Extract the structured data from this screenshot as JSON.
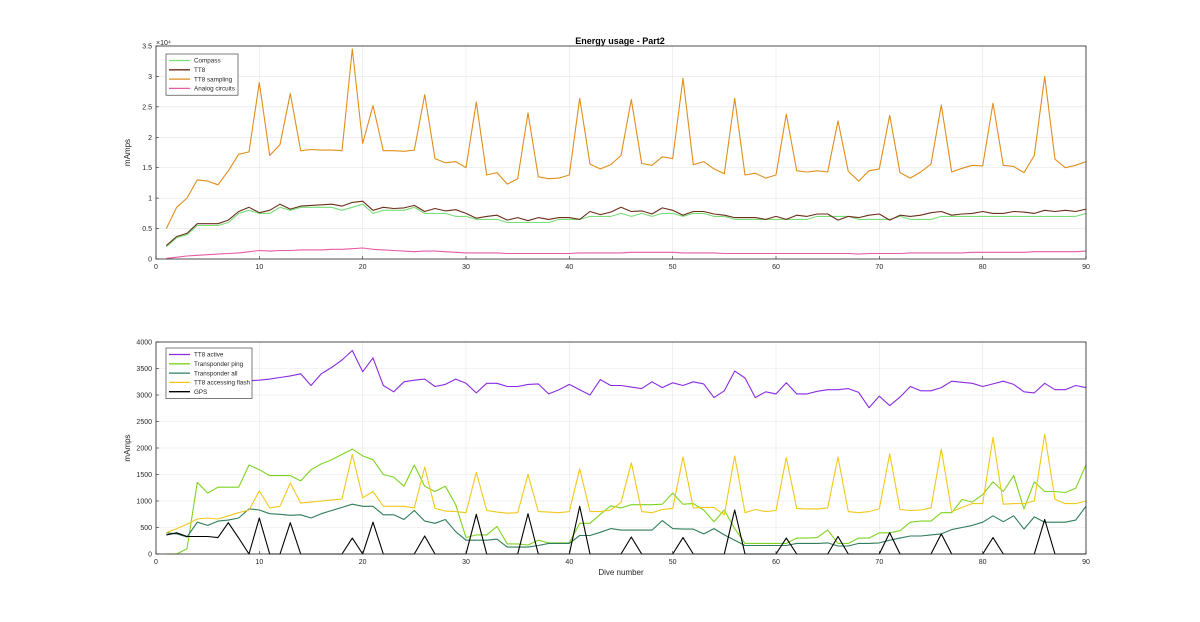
{
  "chart_data": [
    {
      "type": "line",
      "title": "Energy usage - Part2",
      "xlabel": "",
      "ylabel": "mAmps",
      "xlim": [
        0,
        90
      ],
      "ylim": [
        0,
        35000
      ],
      "y_exponent_label": "×10⁴",
      "x_ticks": [
        0,
        10,
        20,
        30,
        40,
        50,
        60,
        70,
        80,
        90
      ],
      "y_ticks": [
        0,
        5000,
        10000,
        15000,
        20000,
        25000,
        30000,
        35000
      ],
      "y_tick_labels": [
        "0",
        "0.5",
        "1",
        "1.5",
        "2",
        "2.5",
        "3",
        "3.5"
      ],
      "grid": true,
      "legend_position": "top-left",
      "series": [
        {
          "name": "Compass",
          "color": "#77dd77",
          "values": [
            2000,
            3500,
            4000,
            5500,
            5500,
            5500,
            6000,
            7500,
            8000,
            7500,
            7500,
            8500,
            8000,
            8500,
            8500,
            8500,
            8500,
            8000,
            8500,
            9000,
            7500,
            8000,
            8000,
            8000,
            8500,
            7500,
            7500,
            7500,
            7000,
            7000,
            6500,
            6500,
            6500,
            6000,
            6000,
            6000,
            6000,
            6000,
            6500,
            6500,
            6500,
            7000,
            7000,
            7000,
            7500,
            7000,
            7500,
            7000,
            7500,
            7500,
            7000,
            7500,
            7500,
            7000,
            7000,
            6500,
            6500,
            6500,
            6500,
            6500,
            6500,
            6500,
            6500,
            7000,
            7000,
            7000,
            7000,
            6500,
            6500,
            6500,
            6500,
            7000,
            6500,
            6500,
            6500,
            7000,
            7000,
            7000,
            7000,
            7000,
            7000,
            7000,
            7000,
            7000,
            7000,
            7000,
            7000,
            7000,
            7000,
            7500
          ]
        },
        {
          "name": "TT8",
          "color": "#6b2e1a",
          "values": [
            2200,
            3700,
            4200,
            5800,
            5800,
            5800,
            6400,
            7800,
            8500,
            7600,
            8000,
            9000,
            8200,
            8700,
            8800,
            8900,
            9000,
            8700,
            9300,
            9500,
            8000,
            8500,
            8300,
            8400,
            8800,
            7800,
            8300,
            7900,
            8100,
            7500,
            6700,
            7000,
            7200,
            6400,
            6800,
            6300,
            6800,
            6500,
            6800,
            6800,
            6500,
            7800,
            7300,
            7700,
            8500,
            7800,
            7900,
            7400,
            8400,
            8000,
            7200,
            7800,
            7800,
            7400,
            7200,
            6800,
            6800,
            6800,
            6500,
            7000,
            6500,
            7200,
            7000,
            7400,
            7400,
            6400,
            7000,
            6800,
            7200,
            7400,
            6400,
            7200,
            7000,
            7200,
            7600,
            7800,
            7200,
            7400,
            7500,
            7800,
            7500,
            7500,
            7800,
            7700,
            7500,
            8000,
            7800,
            8000,
            7800,
            8200
          ]
        },
        {
          "name": "TT8 sampling",
          "color": "#e08e1a",
          "values": [
            5000,
            8500,
            10000,
            13000,
            12800,
            12200,
            14500,
            17200,
            17600,
            29000,
            17000,
            18800,
            27200,
            17800,
            18000,
            17900,
            17900,
            17800,
            34500,
            19000,
            25200,
            17800,
            17800,
            17700,
            17900,
            27000,
            16500,
            15800,
            16000,
            15000,
            25800,
            13800,
            14200,
            12300,
            13200,
            24000,
            13500,
            13200,
            13300,
            13800,
            26400,
            15600,
            14800,
            15500,
            17000,
            26200,
            15700,
            15400,
            16800,
            16500,
            29700,
            15500,
            16000,
            14800,
            14000,
            26400,
            13800,
            14100,
            13300,
            13800,
            23800,
            14500,
            14300,
            14500,
            14300,
            22700,
            14400,
            12800,
            14500,
            14800,
            23600,
            14200,
            13300,
            14300,
            15600,
            25300,
            14300,
            14900,
            15400,
            15300,
            25600,
            15400,
            15200,
            14200,
            17000,
            30000,
            16400,
            15000,
            15400,
            16000
          ]
        },
        {
          "name": "Analog circuits",
          "color": "#e85aa6",
          "values": [
            100,
            300,
            500,
            600,
            700,
            800,
            900,
            1000,
            1200,
            1400,
            1300,
            1400,
            1400,
            1500,
            1500,
            1500,
            1600,
            1600,
            1700,
            1800,
            1600,
            1500,
            1400,
            1300,
            1200,
            1300,
            1300,
            1200,
            1100,
            1000,
            1000,
            1000,
            1000,
            900,
            900,
            900,
            900,
            900,
            900,
            900,
            1000,
            1000,
            1000,
            1000,
            1000,
            1100,
            1100,
            1100,
            1100,
            1100,
            1000,
            1000,
            1000,
            1000,
            900,
            900,
            900,
            900,
            900,
            900,
            900,
            900,
            900,
            900,
            900,
            900,
            900,
            800,
            900,
            900,
            900,
            900,
            1000,
            1000,
            1000,
            1000,
            1000,
            1000,
            1100,
            1100,
            1100,
            1100,
            1100,
            1100,
            1200,
            1200,
            1200,
            1200,
            1200,
            1300
          ]
        }
      ]
    },
    {
      "type": "line",
      "title": "",
      "xlabel": "Dive number",
      "ylabel": "mAmps",
      "xlim": [
        0,
        90
      ],
      "ylim": [
        0,
        4000
      ],
      "x_ticks": [
        0,
        10,
        20,
        30,
        40,
        50,
        60,
        70,
        80,
        90
      ],
      "y_ticks": [
        0,
        500,
        1000,
        1500,
        2000,
        2500,
        3000,
        3500,
        4000
      ],
      "grid": true,
      "legend_position": "top-left",
      "series": [
        {
          "name": "TT8 active",
          "color": "#8a2be2",
          "values": [
            3020,
            3200,
            3250,
            3250,
            3250,
            3250,
            3250,
            3260,
            3270,
            3280,
            3300,
            3330,
            3360,
            3400,
            3180,
            3400,
            3520,
            3660,
            3840,
            3440,
            3700,
            3180,
            3060,
            3250,
            3280,
            3300,
            3160,
            3200,
            3300,
            3220,
            3040,
            3220,
            3220,
            3160,
            3160,
            3200,
            3210,
            3020,
            3100,
            3200,
            3100,
            3000,
            3290,
            3180,
            3180,
            3150,
            3120,
            3250,
            3140,
            3230,
            3180,
            3250,
            3210,
            2950,
            3080,
            3450,
            3320,
            2950,
            3060,
            3020,
            3230,
            3020,
            3020,
            3070,
            3100,
            3100,
            3120,
            3050,
            2760,
            2980,
            2800,
            2960,
            3160,
            3080,
            3080,
            3140,
            3260,
            3240,
            3220,
            3160,
            3210,
            3260,
            3200,
            3060,
            3040,
            3220,
            3100,
            3100,
            3180,
            3140
          ]
        },
        {
          "name": "Transponder ping",
          "color": "#7ed321",
          "values": [
            0,
            0,
            100,
            1350,
            1150,
            1260,
            1260,
            1260,
            1680,
            1590,
            1480,
            1480,
            1480,
            1380,
            1590,
            1700,
            1780,
            1880,
            1980,
            1850,
            1780,
            1500,
            1450,
            1280,
            1680,
            1280,
            1180,
            1280,
            930,
            310,
            360,
            360,
            520,
            190,
            190,
            170,
            260,
            210,
            210,
            210,
            580,
            580,
            750,
            910,
            870,
            930,
            930,
            930,
            940,
            1150,
            940,
            950,
            830,
            610,
            830,
            480,
            200,
            200,
            200,
            200,
            200,
            300,
            300,
            310,
            450,
            200,
            200,
            300,
            300,
            400,
            400,
            440,
            600,
            620,
            620,
            780,
            780,
            1030,
            980,
            1120,
            1360,
            1180,
            1480,
            850,
            1360,
            1180,
            1180,
            1160,
            1240,
            1680
          ]
        },
        {
          "name": "Transponder all",
          "color": "#2e7d5b",
          "values": [
            400,
            380,
            320,
            600,
            540,
            620,
            640,
            680,
            850,
            830,
            760,
            750,
            730,
            740,
            680,
            760,
            820,
            880,
            940,
            900,
            900,
            740,
            740,
            650,
            820,
            620,
            580,
            650,
            420,
            260,
            260,
            260,
            280,
            130,
            130,
            130,
            160,
            200,
            200,
            200,
            350,
            350,
            410,
            480,
            450,
            450,
            450,
            450,
            630,
            480,
            470,
            470,
            380,
            480,
            360,
            260,
            160,
            160,
            160,
            160,
            160,
            200,
            200,
            200,
            210,
            150,
            150,
            200,
            200,
            210,
            260,
            300,
            340,
            340,
            360,
            380,
            460,
            500,
            540,
            600,
            720,
            610,
            720,
            470,
            700,
            600,
            600,
            600,
            640,
            900
          ]
        },
        {
          "name": "TT8 accessing flash",
          "color": "#f2c81a",
          "values": [
            400,
            480,
            560,
            660,
            680,
            660,
            720,
            780,
            830,
            1190,
            870,
            900,
            1340,
            960,
            980,
            1000,
            1020,
            1040,
            1880,
            1060,
            1180,
            900,
            900,
            900,
            870,
            1640,
            860,
            810,
            800,
            780,
            1540,
            820,
            790,
            770,
            780,
            1500,
            800,
            790,
            780,
            800,
            1610,
            800,
            800,
            830,
            970,
            1720,
            800,
            780,
            840,
            860,
            1830,
            870,
            880,
            880,
            740,
            1850,
            780,
            840,
            800,
            820,
            1820,
            860,
            850,
            850,
            870,
            1830,
            800,
            780,
            800,
            850,
            1890,
            840,
            820,
            830,
            870,
            1980,
            800,
            880,
            950,
            950,
            2200,
            940,
            950,
            950,
            1000,
            2260,
            1030,
            950,
            950,
            1000
          ]
        },
        {
          "name": "GPS",
          "color": "#000000",
          "values": [
            360,
            400,
            330,
            330,
            330,
            310,
            590,
            300,
            0,
            680,
            0,
            0,
            590,
            0,
            0,
            0,
            0,
            0,
            300,
            0,
            600,
            0,
            0,
            0,
            0,
            340,
            0,
            0,
            0,
            0,
            750,
            0,
            0,
            0,
            0,
            760,
            0,
            0,
            0,
            0,
            900,
            0,
            0,
            0,
            0,
            320,
            0,
            0,
            0,
            0,
            310,
            0,
            0,
            0,
            0,
            830,
            0,
            0,
            0,
            0,
            300,
            0,
            0,
            0,
            0,
            330,
            0,
            0,
            0,
            0,
            400,
            0,
            0,
            0,
            0,
            380,
            0,
            0,
            0,
            0,
            310,
            0,
            0,
            0,
            0,
            650,
            0,
            0,
            0,
            0
          ]
        }
      ]
    }
  ]
}
